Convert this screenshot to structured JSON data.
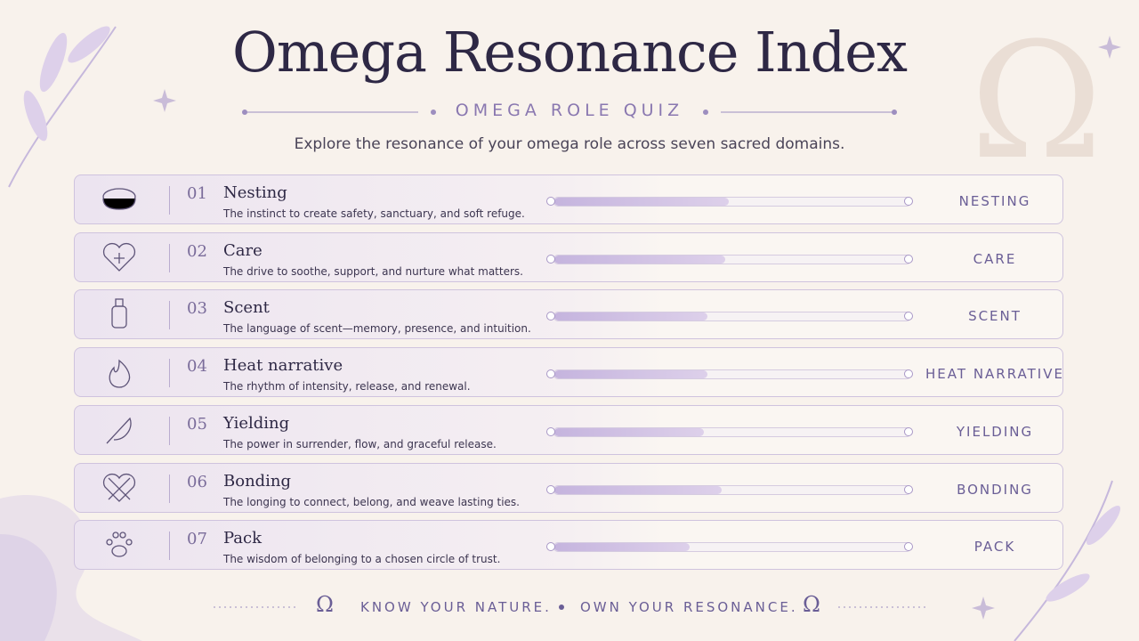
{
  "header": {
    "title": "Omega Resonance Index",
    "subtitle": "OMEGA ROLE QUIZ",
    "description": "Explore the resonance of your omega role across seven sacred domains."
  },
  "symbol": "Ω",
  "scale": [
    0,
    100
  ],
  "rows": [
    {
      "number": "01",
      "name": "Nesting",
      "description": "The instinct to create safety, sanctuary, and soft refuge.",
      "value": 49,
      "label": "NESTING"
    },
    {
      "number": "02",
      "name": "Care",
      "description": "The drive to soothe, support, and nurture what matters.",
      "value": 48,
      "label": "CARE"
    },
    {
      "number": "03",
      "name": "Scent",
      "description": "The language of scent—memory, presence, and intuition.",
      "value": 43,
      "label": "SCENT"
    },
    {
      "number": "04",
      "name": "Heat narrative",
      "description": "The rhythm of intensity, release, and renewal.",
      "value": 43,
      "label": "HEAT NARRATIVE"
    },
    {
      "number": "05",
      "name": "Yielding",
      "description": "The power in surrender, flow, and graceful release.",
      "value": 42,
      "label": "YIELDING"
    },
    {
      "number": "06",
      "name": "Bonding",
      "description": "The longing to connect, belong, and weave lasting ties.",
      "value": 47,
      "label": "BONDING"
    },
    {
      "number": "07",
      "name": "Pack",
      "description": "The wisdom of belonging to a chosen circle of trust.",
      "value": 38,
      "label": "PACK"
    }
  ],
  "footer": {
    "left": "KNOW YOUR NATURE.",
    "right": "OWN YOUR RESONANCE."
  }
}
